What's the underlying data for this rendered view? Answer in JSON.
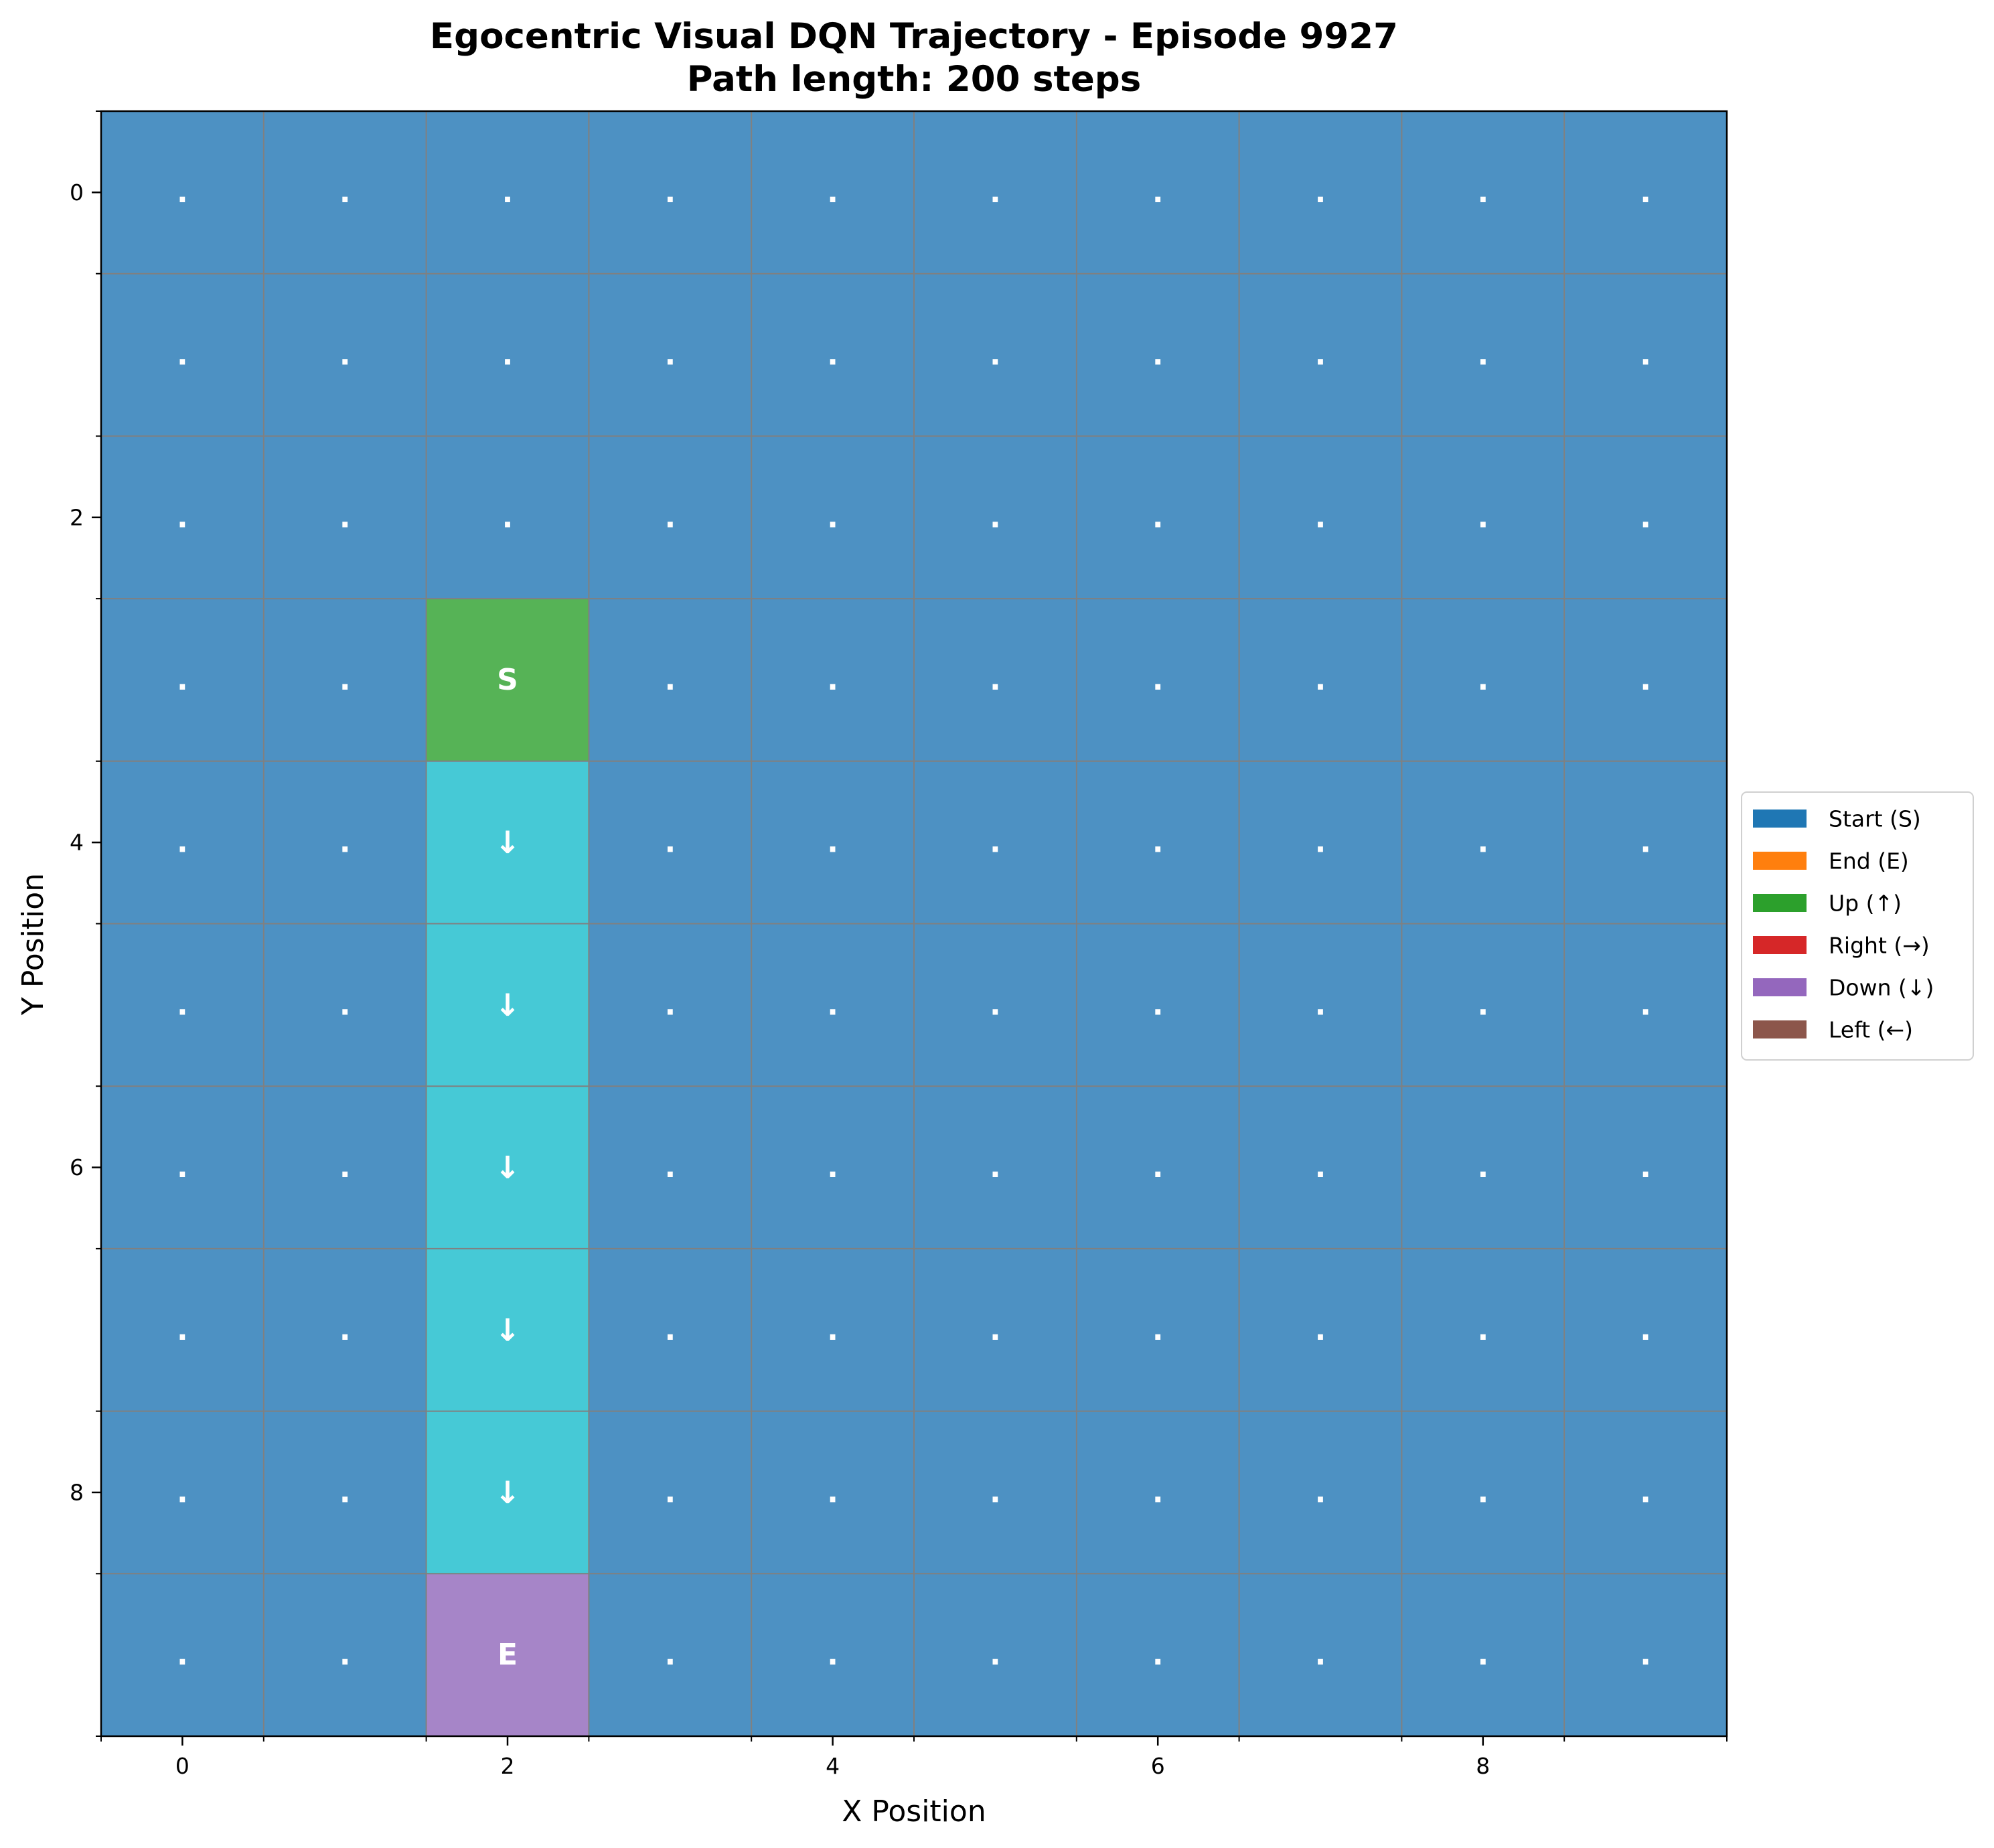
{
  "chart_data": {
    "type": "heatmap",
    "title_line1": "Egocentric Visual DQN Trajectory - Episode 9927",
    "title_line2": "Path length: 200 steps",
    "xlabel": "X Position",
    "ylabel": "Y Position",
    "grid_size": [
      10,
      10
    ],
    "xlim": [
      -0.5,
      9.5
    ],
    "ylim": [
      9.5,
      -0.5
    ],
    "x_ticks": [
      "0",
      "2",
      "4",
      "6",
      "8"
    ],
    "y_ticks": [
      "0",
      "2",
      "4",
      "6",
      "8"
    ],
    "x_tick_values": [
      0,
      2,
      4,
      6,
      8
    ],
    "y_tick_values": [
      0,
      2,
      4,
      6,
      8
    ],
    "grid": true,
    "background_marker": ".",
    "cells": [
      {
        "x": 2,
        "y": 3,
        "label": "S",
        "kind": "start",
        "color": "#56b356"
      },
      {
        "x": 2,
        "y": 4,
        "label": "↓",
        "kind": "path",
        "color": "#46c9d6"
      },
      {
        "x": 2,
        "y": 5,
        "label": "↓",
        "kind": "path",
        "color": "#46c9d6"
      },
      {
        "x": 2,
        "y": 6,
        "label": "↓",
        "kind": "path",
        "color": "#46c9d6"
      },
      {
        "x": 2,
        "y": 7,
        "label": "↓",
        "kind": "path",
        "color": "#46c9d6"
      },
      {
        "x": 2,
        "y": 8,
        "label": "↓",
        "kind": "path",
        "color": "#46c9d6"
      },
      {
        "x": 2,
        "y": 9,
        "label": "E",
        "kind": "end",
        "color": "#a685c8"
      }
    ],
    "legend_position": "center-right",
    "legend": [
      {
        "label": "Start (S)",
        "color": "#1f77b4"
      },
      {
        "label": "End (E)",
        "color": "#ff7f0e"
      },
      {
        "label": "Up (↑)",
        "color": "#2ca02c"
      },
      {
        "label": "Right (→)",
        "color": "#d62728"
      },
      {
        "label": "Down (↓)",
        "color": "#9467bd"
      },
      {
        "label": "Left (←)",
        "color": "#8c564b"
      }
    ],
    "colors": {
      "background_cell": "#4d91c3",
      "grid_line": "#808080",
      "text_on_cell": "#ffffff"
    }
  }
}
